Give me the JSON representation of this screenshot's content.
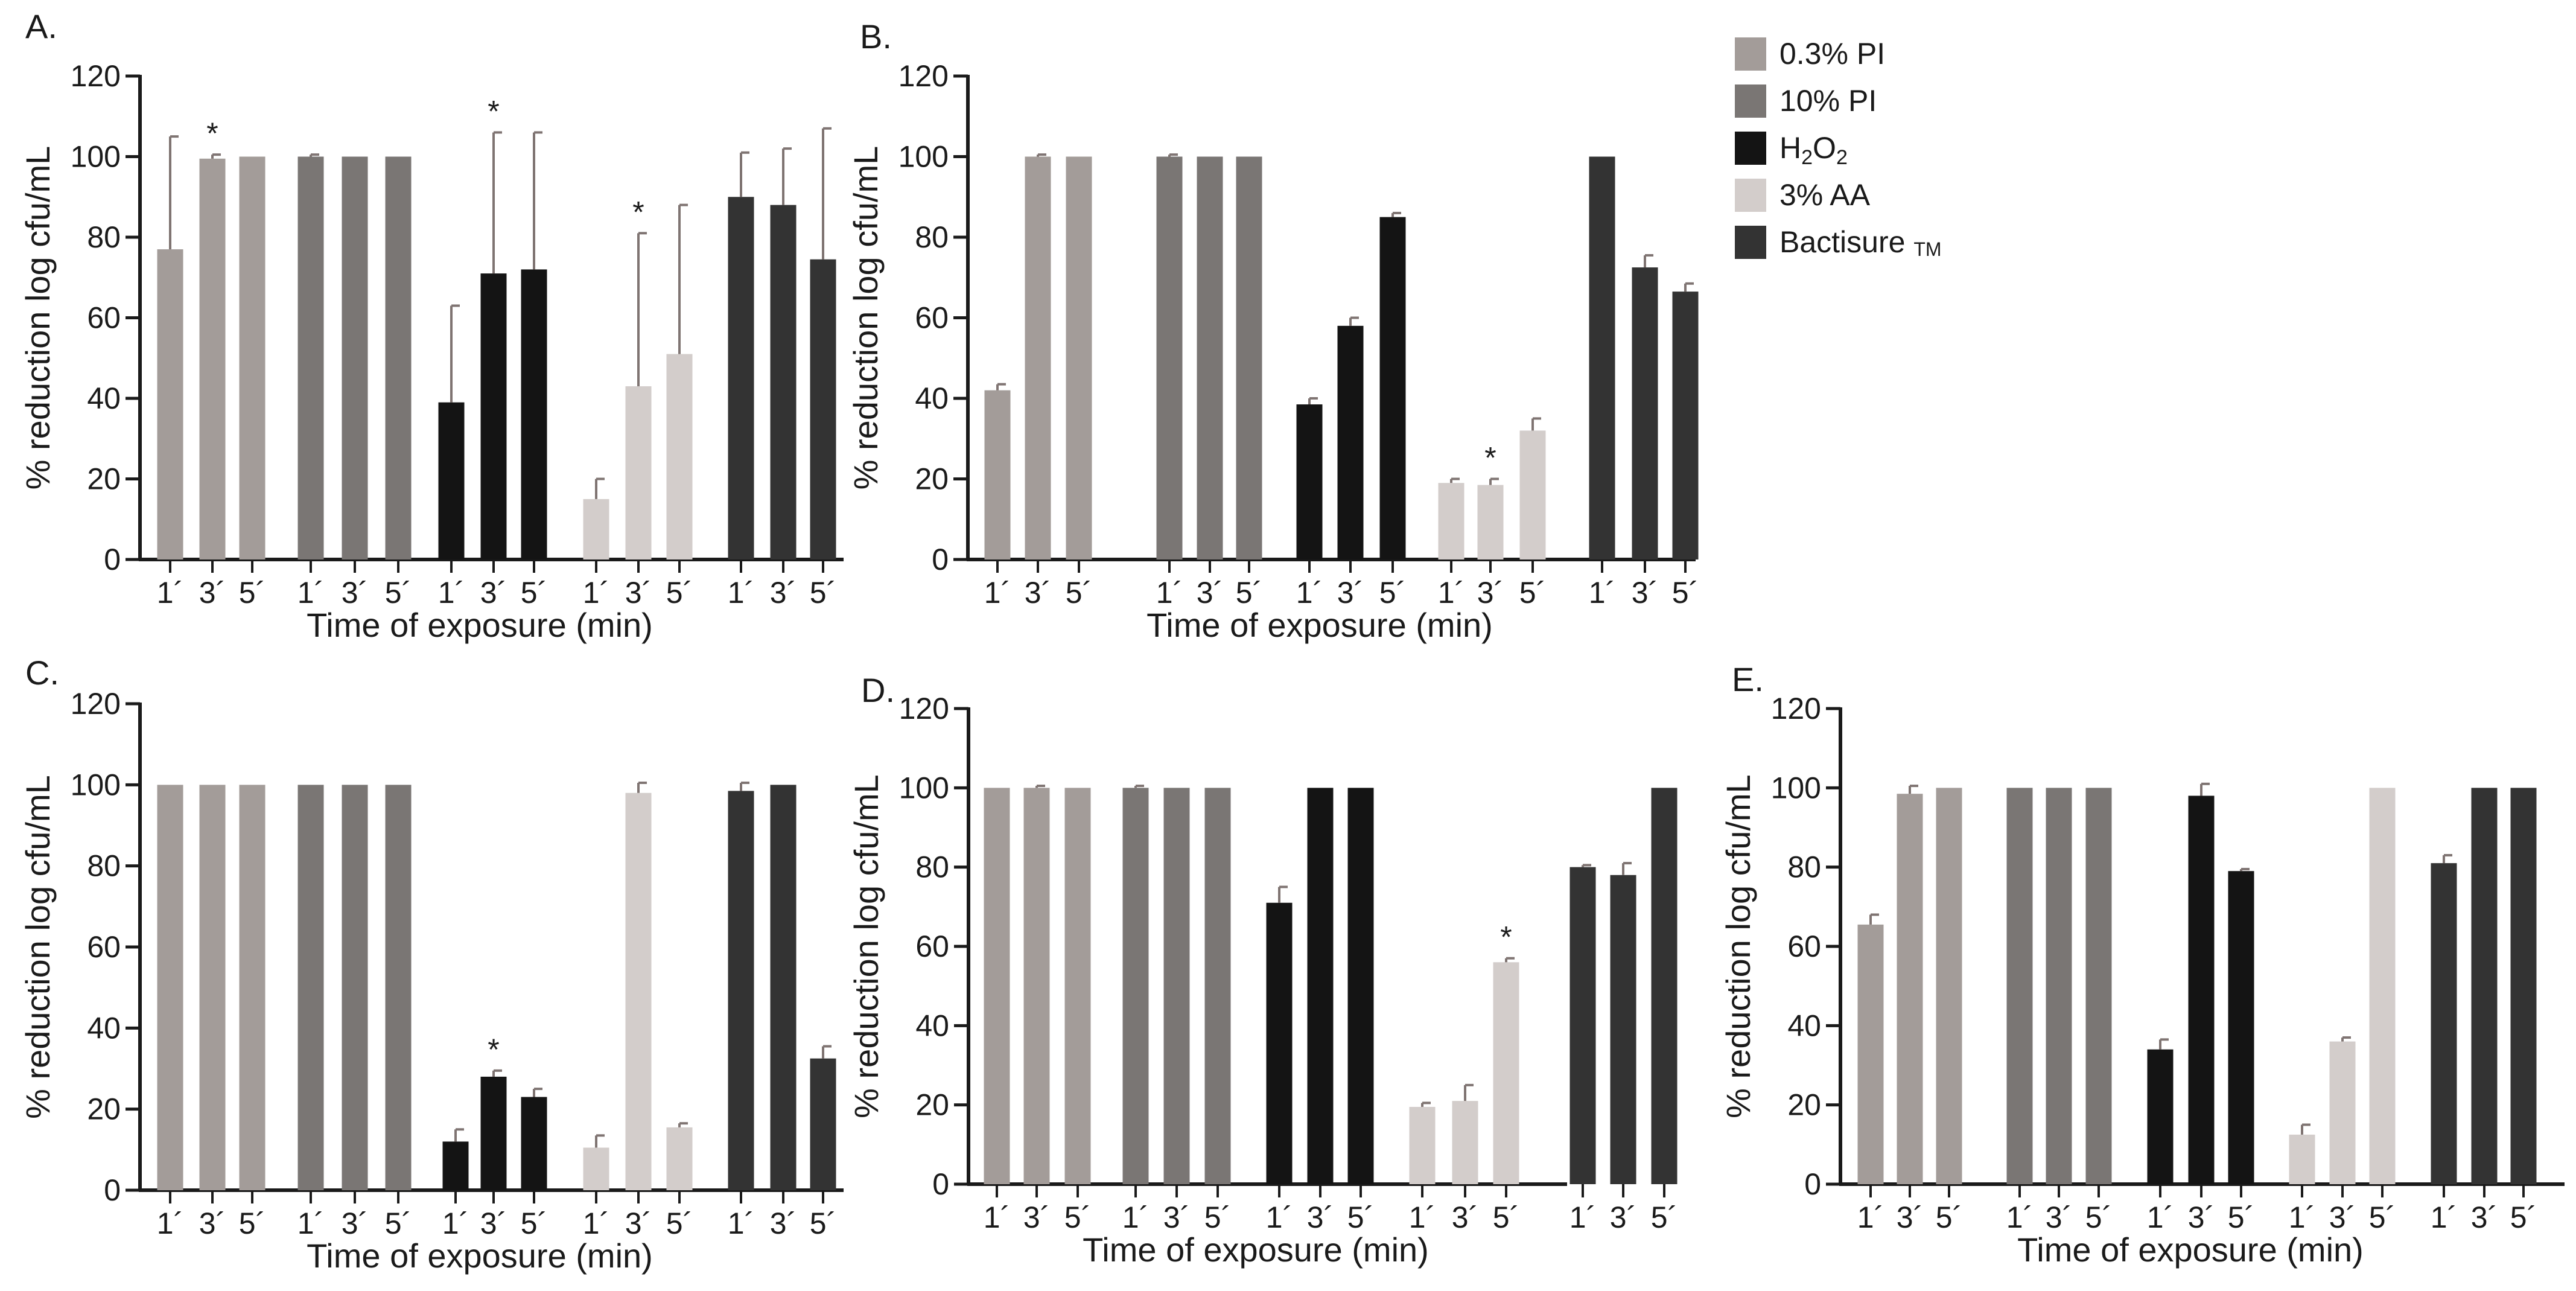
{
  "chart_data": [
    {
      "type": "bar",
      "panel": "A.",
      "ylabel": "% reduction log cfu/mL",
      "xlabel": "Time of exposure (min)",
      "ylim": [
        0,
        120
      ],
      "yticks": [
        0,
        20,
        40,
        60,
        80,
        100,
        120
      ],
      "categories": [
        "1´",
        "3´",
        "5´"
      ],
      "series": [
        {
          "name": "0.3% PI",
          "values": [
            77,
            99.5,
            100
          ],
          "errors": [
            28,
            1,
            0
          ],
          "sig": [
            false,
            true,
            false
          ]
        },
        {
          "name": "10% PI",
          "values": [
            100,
            100,
            100
          ],
          "errors": [
            0.5,
            0,
            0
          ],
          "sig": [
            false,
            false,
            false
          ]
        },
        {
          "name": "H₂O₂",
          "values": [
            39,
            71,
            72
          ],
          "errors": [
            24,
            35,
            34
          ],
          "sig": [
            false,
            true,
            false
          ]
        },
        {
          "name": "3% AA",
          "values": [
            15,
            43,
            51
          ],
          "errors": [
            5,
            38,
            37
          ],
          "sig": [
            false,
            true,
            false
          ]
        },
        {
          "name": "Bactisure ™",
          "values": [
            90,
            88,
            74.5
          ],
          "errors": [
            11,
            14,
            32.5
          ],
          "sig": [
            false,
            false,
            false
          ]
        }
      ]
    },
    {
      "type": "bar",
      "panel": "B.",
      "ylabel": "% reduction log cfu/mL",
      "xlabel": "Time of exposure (min)",
      "ylim": [
        0,
        120
      ],
      "yticks": [
        0,
        20,
        40,
        60,
        80,
        100,
        120
      ],
      "categories": [
        "1´",
        "3´",
        "5´"
      ],
      "series": [
        {
          "name": "0.3% PI",
          "values": [
            42,
            100,
            100
          ],
          "errors": [
            1.5,
            0.5,
            0
          ],
          "sig": [
            false,
            false,
            false
          ]
        },
        {
          "name": "10% PI",
          "values": [
            100,
            100,
            100
          ],
          "errors": [
            0.5,
            0,
            0
          ],
          "sig": [
            false,
            false,
            false
          ]
        },
        {
          "name": "H₂O₂",
          "values": [
            38.5,
            58,
            85
          ],
          "errors": [
            1.5,
            2,
            1
          ],
          "sig": [
            false,
            false,
            false
          ]
        },
        {
          "name": "3% AA",
          "values": [
            19,
            18.5,
            32
          ],
          "errors": [
            1,
            1.5,
            3
          ],
          "sig": [
            false,
            true,
            false
          ]
        },
        {
          "name": "Bactisure ™",
          "values": [
            100,
            72.5,
            66.5
          ],
          "errors": [
            0,
            3,
            2
          ],
          "sig": [
            false,
            false,
            false
          ]
        }
      ]
    },
    {
      "type": "bar",
      "panel": "C.",
      "ylabel": "% reduction log cfu/mL",
      "xlabel": "Time of exposure (min)",
      "ylim": [
        0,
        120
      ],
      "yticks": [
        0,
        20,
        40,
        60,
        80,
        100,
        120
      ],
      "categories": [
        "1´",
        "3´",
        "5´"
      ],
      "series": [
        {
          "name": "0.3% PI",
          "values": [
            100,
            100,
            100
          ],
          "errors": [
            0,
            0,
            0
          ],
          "sig": [
            false,
            false,
            false
          ]
        },
        {
          "name": "10% PI",
          "values": [
            100,
            100,
            100
          ],
          "errors": [
            0,
            0,
            0
          ],
          "sig": [
            false,
            false,
            false
          ]
        },
        {
          "name": "H₂O₂",
          "values": [
            12,
            28,
            23
          ],
          "errors": [
            3,
            1.5,
            2
          ],
          "sig": [
            false,
            true,
            false
          ]
        },
        {
          "name": "3% AA",
          "values": [
            10.5,
            98,
            15.5
          ],
          "errors": [
            3,
            2.5,
            1
          ],
          "sig": [
            false,
            false,
            false
          ]
        },
        {
          "name": "Bactisure ™",
          "values": [
            98.5,
            100,
            32.5
          ],
          "errors": [
            2,
            0,
            3
          ],
          "sig": [
            false,
            false,
            false
          ]
        }
      ]
    },
    {
      "type": "bar",
      "panel": "D.",
      "ylabel": "% reduction log cfu/mL",
      "xlabel": "Time of exposure (min)",
      "ylim": [
        0,
        120
      ],
      "yticks": [
        0,
        20,
        40,
        60,
        80,
        100,
        120
      ],
      "categories": [
        "1´",
        "3´",
        "5´"
      ],
      "series": [
        {
          "name": "0.3% PI",
          "values": [
            100,
            100,
            100
          ],
          "errors": [
            0,
            0.5,
            0
          ],
          "sig": [
            false,
            false,
            false
          ]
        },
        {
          "name": "10% PI",
          "values": [
            100,
            100,
            100
          ],
          "errors": [
            0.5,
            0,
            0
          ],
          "sig": [
            false,
            false,
            false
          ]
        },
        {
          "name": "H₂O₂",
          "values": [
            71,
            100,
            100
          ],
          "errors": [
            4,
            0,
            0
          ],
          "sig": [
            false,
            false,
            false
          ]
        },
        {
          "name": "3% AA",
          "values": [
            19.5,
            21,
            56
          ],
          "errors": [
            1,
            4,
            1
          ],
          "sig": [
            false,
            false,
            true
          ]
        },
        {
          "name": "Bactisure ™",
          "values": [
            80,
            78,
            100
          ],
          "errors": [
            0.5,
            3,
            0
          ],
          "sig": [
            false,
            false,
            false
          ]
        }
      ]
    },
    {
      "type": "bar",
      "panel": "E.",
      "ylabel": "% reduction log cfu/mL",
      "xlabel": "Time of exposure (min)",
      "ylim": [
        0,
        120
      ],
      "yticks": [
        0,
        20,
        40,
        60,
        80,
        100,
        120
      ],
      "categories": [
        "1´",
        "3´",
        "5´"
      ],
      "series": [
        {
          "name": "0.3% PI",
          "values": [
            65.5,
            98.5,
            100
          ],
          "errors": [
            2.5,
            2,
            0
          ],
          "sig": [
            false,
            false,
            false
          ]
        },
        {
          "name": "10% PI",
          "values": [
            100,
            100,
            100
          ],
          "errors": [
            0,
            0,
            0
          ],
          "sig": [
            false,
            false,
            false
          ]
        },
        {
          "name": "H₂O₂",
          "values": [
            34,
            98,
            79
          ],
          "errors": [
            2.5,
            3,
            0.5
          ],
          "sig": [
            false,
            false,
            false
          ]
        },
        {
          "name": "3% AA",
          "values": [
            12.5,
            36,
            100
          ],
          "errors": [
            2.5,
            1,
            0
          ],
          "sig": [
            false,
            false,
            false
          ]
        },
        {
          "name": "Bactisure ™",
          "values": [
            81,
            100,
            100
          ],
          "errors": [
            2,
            0,
            0
          ],
          "sig": [
            false,
            false,
            false
          ]
        }
      ]
    }
  ],
  "legend": {
    "entries": [
      {
        "label": "0.3% PI",
        "color": "#a39c99"
      },
      {
        "label": "10% PI",
        "color": "#7a7674"
      },
      {
        "label": "H2O2",
        "color": "#141414"
      },
      {
        "label": "3% AA",
        "color": "#d3cdcb"
      },
      {
        "label": "Bactisure TM",
        "color": "#333333"
      }
    ]
  },
  "significance_marker": "*",
  "error_bar_color": "#7f7472"
}
